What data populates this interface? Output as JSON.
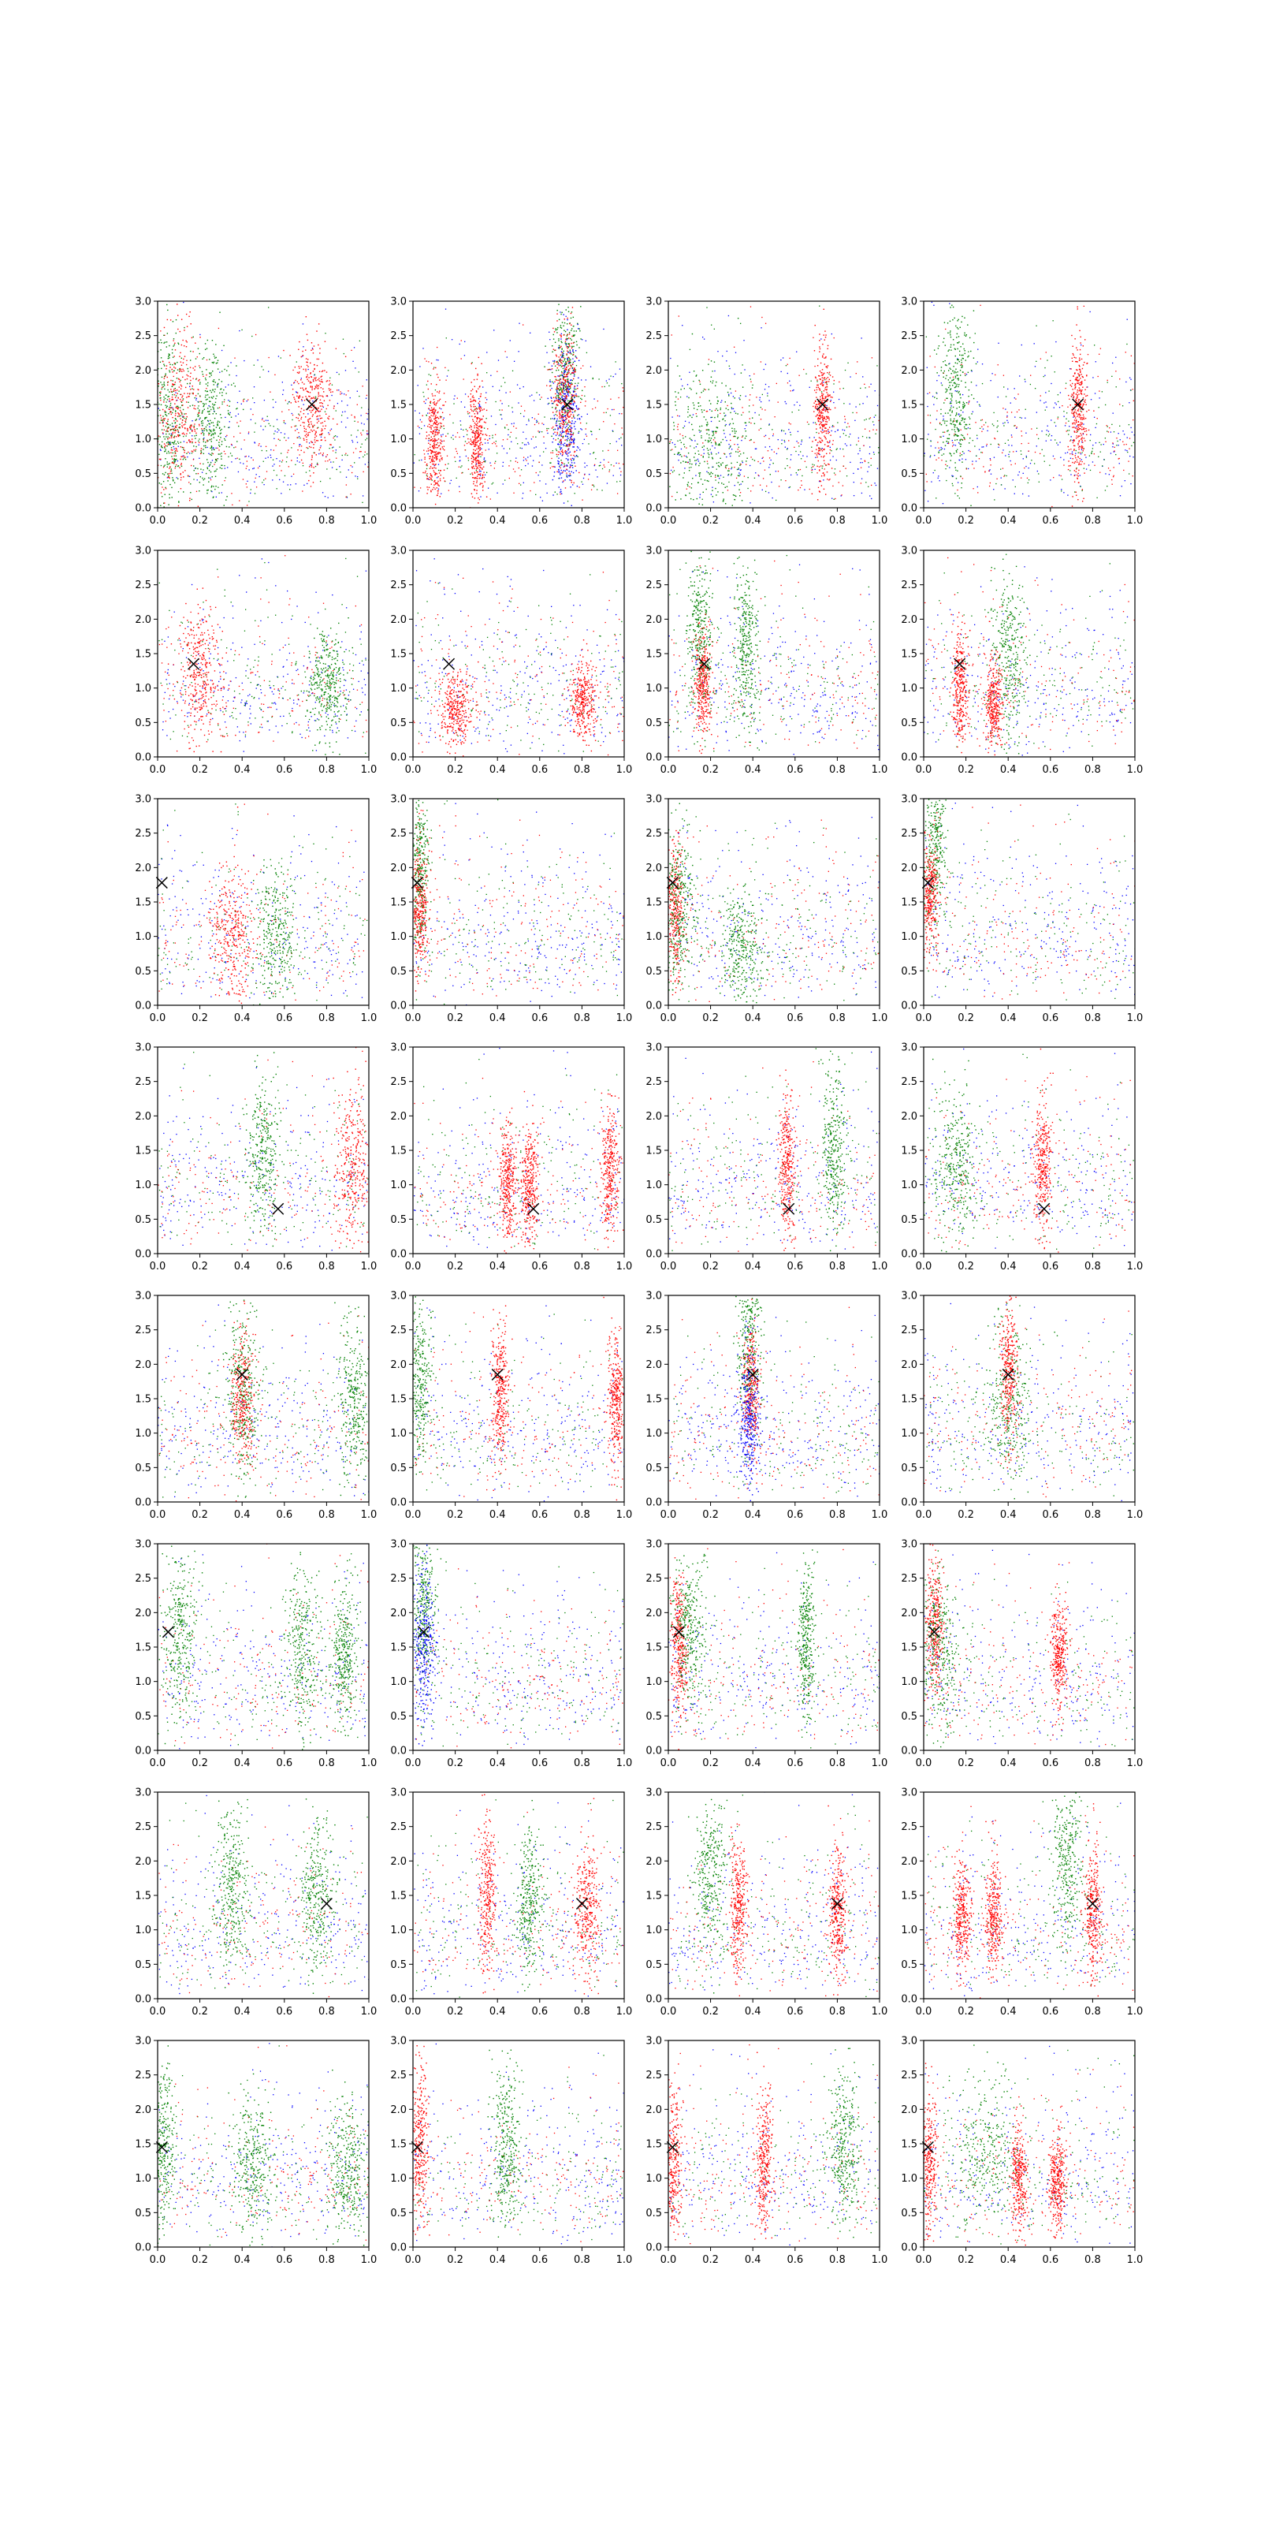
{
  "figure": {
    "rows": 8,
    "cols": 4
  },
  "colors": {
    "red": "#ff0000",
    "green": "#008000",
    "blue": "#0000ff",
    "marker": "#000000"
  },
  "axes": {
    "xlim": [
      0.0,
      1.0
    ],
    "ylim": [
      0.0,
      3.0
    ],
    "xticks": [
      "0.0",
      "0.2",
      "0.4",
      "0.6",
      "0.8",
      "1.0"
    ],
    "yticks": [
      "0.0",
      "0.5",
      "1.0",
      "1.5",
      "2.0",
      "2.5",
      "3.0"
    ]
  },
  "chart_data": {
    "type": "scatter",
    "grid": false,
    "description_source": "8x4 grid of scatter subplots; each row shares one X marker position; points colored red, green, blue",
    "panels": [
      {
        "row": 0,
        "marker": [
          0.73,
          1.5
        ],
        "clusters": [
          [
            0.05,
            1.3,
            0.04,
            0.7,
            "green"
          ],
          [
            0.1,
            1.4,
            0.05,
            0.6,
            "red"
          ],
          [
            0.25,
            1.2,
            0.05,
            0.6,
            "green"
          ],
          [
            0.73,
            1.5,
            0.05,
            0.5,
            "red"
          ]
        ]
      },
      {
        "row": 0,
        "marker": [
          0.73,
          1.5
        ],
        "clusters": [
          [
            0.72,
            2.0,
            0.03,
            0.6,
            "green"
          ],
          [
            0.72,
            1.3,
            0.03,
            0.6,
            "blue"
          ],
          [
            0.72,
            1.6,
            0.03,
            0.5,
            "red"
          ],
          [
            0.1,
            1.0,
            0.02,
            0.4,
            "red"
          ],
          [
            0.3,
            1.0,
            0.02,
            0.4,
            "red"
          ]
        ]
      },
      {
        "row": 0,
        "marker": [
          0.73,
          1.5
        ],
        "clusters": [
          [
            0.73,
            1.4,
            0.02,
            0.5,
            "red"
          ],
          [
            0.2,
            0.9,
            0.1,
            0.6,
            "green"
          ]
        ]
      },
      {
        "row": 0,
        "marker": [
          0.73,
          1.5
        ],
        "clusters": [
          [
            0.15,
            1.7,
            0.04,
            0.6,
            "green"
          ],
          [
            0.73,
            1.4,
            0.02,
            0.5,
            "red"
          ]
        ]
      },
      {
        "row": 1,
        "marker": [
          0.17,
          1.35
        ],
        "clusters": [
          [
            0.2,
            1.2,
            0.05,
            0.5,
            "red"
          ],
          [
            0.8,
            1.0,
            0.05,
            0.4,
            "green"
          ]
        ]
      },
      {
        "row": 1,
        "marker": [
          0.17,
          1.35
        ],
        "clusters": [
          [
            0.8,
            0.8,
            0.03,
            0.3,
            "red"
          ],
          [
            0.2,
            0.7,
            0.04,
            0.3,
            "red"
          ]
        ]
      },
      {
        "row": 1,
        "marker": [
          0.17,
          1.35
        ],
        "clusters": [
          [
            0.15,
            1.8,
            0.03,
            0.6,
            "green"
          ],
          [
            0.37,
            1.6,
            0.03,
            0.6,
            "green"
          ],
          [
            0.16,
            1.0,
            0.02,
            0.4,
            "red"
          ]
        ]
      },
      {
        "row": 1,
        "marker": [
          0.17,
          1.35
        ],
        "clusters": [
          [
            0.17,
            1.0,
            0.02,
            0.4,
            "red"
          ],
          [
            0.4,
            1.5,
            0.04,
            0.6,
            "green"
          ],
          [
            0.33,
            0.8,
            0.02,
            0.3,
            "red"
          ]
        ]
      },
      {
        "row": 2,
        "marker": [
          0.02,
          1.78
        ],
        "clusters": [
          [
            0.35,
            1.0,
            0.05,
            0.5,
            "red"
          ],
          [
            0.55,
            1.0,
            0.05,
            0.5,
            "green"
          ]
        ]
      },
      {
        "row": 2,
        "marker": [
          0.02,
          1.78
        ],
        "clusters": [
          [
            0.03,
            2.0,
            0.02,
            0.6,
            "green"
          ],
          [
            0.03,
            1.4,
            0.02,
            0.5,
            "red"
          ]
        ]
      },
      {
        "row": 2,
        "marker": [
          0.02,
          1.78
        ],
        "clusters": [
          [
            0.03,
            1.4,
            0.02,
            0.5,
            "red"
          ],
          [
            0.05,
            1.5,
            0.04,
            0.6,
            "green"
          ],
          [
            0.35,
            0.8,
            0.05,
            0.4,
            "green"
          ]
        ]
      },
      {
        "row": 2,
        "marker": [
          0.02,
          1.78
        ],
        "clusters": [
          [
            0.05,
            2.4,
            0.03,
            0.6,
            "green"
          ],
          [
            0.03,
            1.6,
            0.02,
            0.4,
            "red"
          ]
        ]
      },
      {
        "row": 3,
        "marker": [
          0.57,
          0.65
        ],
        "clusters": [
          [
            0.5,
            1.4,
            0.04,
            0.6,
            "green"
          ],
          [
            0.92,
            1.3,
            0.04,
            0.6,
            "red"
          ]
        ]
      },
      {
        "row": 3,
        "marker": [
          0.57,
          0.65
        ],
        "clusters": [
          [
            0.45,
            1.0,
            0.02,
            0.4,
            "red"
          ],
          [
            0.55,
            1.0,
            0.02,
            0.4,
            "red"
          ],
          [
            0.93,
            1.2,
            0.02,
            0.5,
            "red"
          ]
        ]
      },
      {
        "row": 3,
        "marker": [
          0.57,
          0.65
        ],
        "clusters": [
          [
            0.56,
            1.3,
            0.02,
            0.5,
            "red"
          ],
          [
            0.78,
            1.5,
            0.03,
            0.6,
            "green"
          ]
        ]
      },
      {
        "row": 3,
        "marker": [
          0.57,
          0.65
        ],
        "clusters": [
          [
            0.56,
            1.3,
            0.02,
            0.5,
            "red"
          ],
          [
            0.15,
            1.3,
            0.05,
            0.5,
            "green"
          ]
        ]
      },
      {
        "row": 4,
        "marker": [
          0.4,
          1.85
        ],
        "clusters": [
          [
            0.4,
            1.6,
            0.04,
            0.6,
            "green"
          ],
          [
            0.93,
            1.5,
            0.04,
            0.6,
            "green"
          ],
          [
            0.4,
            1.5,
            0.03,
            0.5,
            "red"
          ]
        ]
      },
      {
        "row": 4,
        "marker": [
          0.4,
          1.85
        ],
        "clusters": [
          [
            0.03,
            1.8,
            0.03,
            0.6,
            "green"
          ],
          [
            0.41,
            1.6,
            0.02,
            0.5,
            "red"
          ],
          [
            0.96,
            1.5,
            0.02,
            0.5,
            "red"
          ]
        ]
      },
      {
        "row": 4,
        "marker": [
          0.4,
          1.85
        ],
        "clusters": [
          [
            0.38,
            2.4,
            0.03,
            0.6,
            "green"
          ],
          [
            0.39,
            1.6,
            0.02,
            0.5,
            "red"
          ],
          [
            0.38,
            1.2,
            0.03,
            0.5,
            "blue"
          ]
        ]
      },
      {
        "row": 4,
        "marker": [
          0.4,
          1.85
        ],
        "clusters": [
          [
            0.4,
            1.4,
            0.06,
            0.6,
            "green"
          ],
          [
            0.4,
            1.9,
            0.02,
            0.5,
            "red"
          ]
        ]
      },
      {
        "row": 5,
        "marker": [
          0.05,
          1.72
        ],
        "clusters": [
          [
            0.1,
            1.7,
            0.04,
            0.6,
            "green"
          ],
          [
            0.68,
            1.5,
            0.04,
            0.6,
            "green"
          ],
          [
            0.88,
            1.4,
            0.03,
            0.5,
            "green"
          ]
        ]
      },
      {
        "row": 5,
        "marker": [
          0.05,
          1.72
        ],
        "clusters": [
          [
            0.05,
            2.1,
            0.03,
            0.6,
            "green"
          ],
          [
            0.05,
            1.5,
            0.03,
            0.6,
            "blue"
          ]
        ]
      },
      {
        "row": 5,
        "marker": [
          0.05,
          1.72
        ],
        "clusters": [
          [
            0.05,
            1.5,
            0.02,
            0.5,
            "red"
          ],
          [
            0.65,
            1.6,
            0.02,
            0.5,
            "green"
          ],
          [
            0.1,
            1.8,
            0.04,
            0.5,
            "green"
          ]
        ]
      },
      {
        "row": 5,
        "marker": [
          0.05,
          1.72
        ],
        "clusters": [
          [
            0.05,
            1.8,
            0.02,
            0.5,
            "red"
          ],
          [
            0.07,
            1.5,
            0.05,
            0.6,
            "green"
          ],
          [
            0.64,
            1.4,
            0.02,
            0.4,
            "red"
          ]
        ]
      },
      {
        "row": 6,
        "marker": [
          0.8,
          1.38
        ],
        "clusters": [
          [
            0.35,
            1.7,
            0.04,
            0.6,
            "green"
          ],
          [
            0.75,
            1.5,
            0.04,
            0.6,
            "green"
          ]
        ]
      },
      {
        "row": 6,
        "marker": [
          0.8,
          1.38
        ],
        "clusters": [
          [
            0.35,
            1.5,
            0.02,
            0.6,
            "red"
          ],
          [
            0.55,
            1.4,
            0.03,
            0.5,
            "green"
          ],
          [
            0.82,
            1.3,
            0.03,
            0.5,
            "red"
          ]
        ]
      },
      {
        "row": 6,
        "marker": [
          0.8,
          1.38
        ],
        "clusters": [
          [
            0.2,
            1.8,
            0.04,
            0.6,
            "green"
          ],
          [
            0.33,
            1.3,
            0.02,
            0.5,
            "red"
          ],
          [
            0.8,
            1.3,
            0.02,
            0.5,
            "red"
          ]
        ]
      },
      {
        "row": 6,
        "marker": [
          0.8,
          1.38
        ],
        "clusters": [
          [
            0.18,
            1.2,
            0.02,
            0.4,
            "red"
          ],
          [
            0.33,
            1.2,
            0.02,
            0.4,
            "red"
          ],
          [
            0.68,
            2.0,
            0.04,
            0.6,
            "green"
          ],
          [
            0.8,
            1.3,
            0.02,
            0.5,
            "red"
          ]
        ]
      },
      {
        "row": 7,
        "marker": [
          0.02,
          1.45
        ],
        "clusters": [
          [
            0.02,
            1.5,
            0.03,
            0.6,
            "green"
          ],
          [
            0.45,
            1.2,
            0.05,
            0.5,
            "green"
          ],
          [
            0.9,
            1.2,
            0.05,
            0.5,
            "green"
          ]
        ]
      },
      {
        "row": 7,
        "marker": [
          0.02,
          1.45
        ],
        "clusters": [
          [
            0.03,
            1.5,
            0.02,
            0.6,
            "red"
          ],
          [
            0.44,
            1.6,
            0.03,
            0.6,
            "green"
          ]
        ]
      },
      {
        "row": 7,
        "marker": [
          0.02,
          1.45
        ],
        "clusters": [
          [
            0.02,
            1.3,
            0.02,
            0.5,
            "red"
          ],
          [
            0.45,
            1.2,
            0.02,
            0.5,
            "red"
          ],
          [
            0.83,
            1.4,
            0.04,
            0.6,
            "green"
          ]
        ]
      },
      {
        "row": 7,
        "marker": [
          0.02,
          1.45
        ],
        "clusters": [
          [
            0.02,
            1.2,
            0.02,
            0.5,
            "red"
          ],
          [
            0.45,
            1.0,
            0.02,
            0.4,
            "red"
          ],
          [
            0.63,
            1.0,
            0.02,
            0.4,
            "red"
          ],
          [
            0.3,
            1.4,
            0.08,
            0.6,
            "green"
          ]
        ]
      }
    ]
  }
}
